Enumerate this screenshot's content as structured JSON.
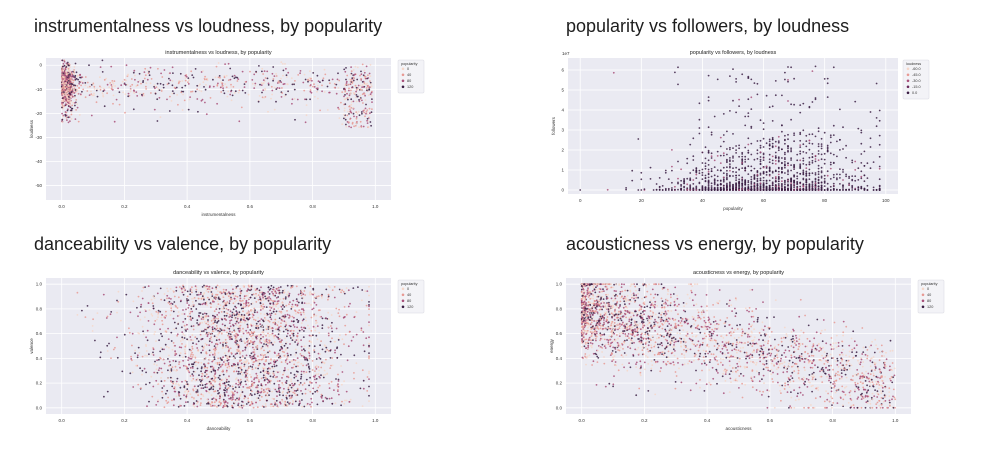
{
  "colors": {
    "plot_bg": "#eaeaf2",
    "grid": "#ffffff",
    "tick_text": "#333333",
    "palette_light": "#f6d7c9",
    "palette_mid1": "#e89a94",
    "palette_mid2": "#a84f79",
    "palette_dark": "#3b1e44"
  },
  "chart_data": [
    {
      "heading": "instrumentalness vs loudness, by popularity",
      "type": "scatter",
      "title": "instrumentalness vs loudness, by popularity",
      "xlabel": "instrumentalness",
      "ylabel": "loudness",
      "xlim": [
        -0.05,
        1.05
      ],
      "ylim": [
        -56,
        3
      ],
      "x_ticks": [
        {
          "v": 0.0,
          "label": "0.0"
        },
        {
          "v": 0.2,
          "label": "0.2"
        },
        {
          "v": 0.4,
          "label": "0.4"
        },
        {
          "v": 0.6,
          "label": "0.6"
        },
        {
          "v": 0.8,
          "label": "0.8"
        },
        {
          "v": 1.0,
          "label": "1.0"
        }
      ],
      "y_ticks": [
        {
          "v": 0,
          "label": "0"
        },
        {
          "v": -10,
          "label": "-10"
        },
        {
          "v": -20,
          "label": "-20"
        },
        {
          "v": -30,
          "label": "-30"
        },
        {
          "v": -40,
          "label": "-40"
        },
        {
          "v": -50,
          "label": "-50"
        }
      ],
      "legend": {
        "title": "popularity",
        "entries": [
          "0",
          "40",
          "80",
          "120"
        ],
        "placement": "top-right"
      },
      "hue_variable": "popularity",
      "point_cloud": {
        "x_range": [
          0.0,
          0.99
        ],
        "y_center": -8,
        "y_spread": 4,
        "y_bottom_tail": -30
      }
    },
    {
      "heading": "popularity vs followers, by loudness",
      "type": "scatter",
      "title": "popularity vs followers, by loudness",
      "xlabel": "popularity",
      "ylabel": "followers",
      "axis_multiplier": "1e7",
      "xlim": [
        -4,
        104
      ],
      "ylim": [
        -0.2,
        6.6
      ],
      "x_ticks": [
        {
          "v": 0,
          "label": "0"
        },
        {
          "v": 20,
          "label": "20"
        },
        {
          "v": 40,
          "label": "40"
        },
        {
          "v": 60,
          "label": "60"
        },
        {
          "v": 80,
          "label": "80"
        },
        {
          "v": 100,
          "label": "100"
        }
      ],
      "y_ticks": [
        {
          "v": 0,
          "label": "0"
        },
        {
          "v": 1,
          "label": "1"
        },
        {
          "v": 2,
          "label": "2"
        },
        {
          "v": 3,
          "label": "3"
        },
        {
          "v": 4,
          "label": "4"
        },
        {
          "v": 5,
          "label": "5"
        },
        {
          "v": 6,
          "label": "6"
        }
      ],
      "legend": {
        "title": "loudness",
        "entries": [
          "-60.0",
          "-45.0",
          "-30.0",
          "-15.0",
          "0.0"
        ],
        "placement": "top-right"
      },
      "hue_variable": "loudness",
      "point_cloud": {
        "x_range": [
          0,
          98
        ],
        "y_max": 6.2
      }
    },
    {
      "heading": "danceability vs valence, by popularity",
      "type": "scatter",
      "title": "danceability vs valence, by popularity",
      "xlabel": "danceability",
      "ylabel": "valence",
      "xlim": [
        -0.05,
        1.05
      ],
      "ylim": [
        -0.05,
        1.05
      ],
      "x_ticks": [
        {
          "v": 0.0,
          "label": "0.0"
        },
        {
          "v": 0.2,
          "label": "0.2"
        },
        {
          "v": 0.4,
          "label": "0.4"
        },
        {
          "v": 0.6,
          "label": "0.6"
        },
        {
          "v": 0.8,
          "label": "0.8"
        },
        {
          "v": 1.0,
          "label": "1.0"
        }
      ],
      "y_ticks": [
        {
          "v": 0.0,
          "label": "0.0"
        },
        {
          "v": 0.2,
          "label": "0.2"
        },
        {
          "v": 0.4,
          "label": "0.4"
        },
        {
          "v": 0.6,
          "label": "0.6"
        },
        {
          "v": 0.8,
          "label": "0.8"
        },
        {
          "v": 1.0,
          "label": "1.0"
        }
      ],
      "legend": {
        "title": "popularity",
        "entries": [
          "0",
          "40",
          "80",
          "120"
        ],
        "placement": "top-right"
      },
      "hue_variable": "popularity",
      "point_cloud": {
        "x_range": [
          0.05,
          0.98
        ],
        "y_range": [
          0.0,
          0.99
        ]
      }
    },
    {
      "heading": "acousticness vs energy, by popularity",
      "type": "scatter",
      "title": "acousticness vs energy, by popularity",
      "xlabel": "acousticness",
      "ylabel": "energy",
      "xlim": [
        -0.05,
        1.05
      ],
      "ylim": [
        -0.05,
        1.05
      ],
      "x_ticks": [
        {
          "v": 0.0,
          "label": "0.0"
        },
        {
          "v": 0.2,
          "label": "0.2"
        },
        {
          "v": 0.4,
          "label": "0.4"
        },
        {
          "v": 0.6,
          "label": "0.6"
        },
        {
          "v": 0.8,
          "label": "0.8"
        },
        {
          "v": 1.0,
          "label": "1.0"
        }
      ],
      "y_ticks": [
        {
          "v": 0.0,
          "label": "0.0"
        },
        {
          "v": 0.2,
          "label": "0.2"
        },
        {
          "v": 0.4,
          "label": "0.4"
        },
        {
          "v": 0.6,
          "label": "0.6"
        },
        {
          "v": 0.8,
          "label": "0.8"
        },
        {
          "v": 1.0,
          "label": "1.0"
        }
      ],
      "legend": {
        "title": "popularity",
        "entries": [
          "0",
          "40",
          "80",
          "120"
        ],
        "placement": "top-right"
      },
      "hue_variable": "popularity",
      "point_cloud": {
        "x_range": [
          0.0,
          1.0
        ],
        "trend": "energy decreases as acousticness increases"
      }
    }
  ]
}
